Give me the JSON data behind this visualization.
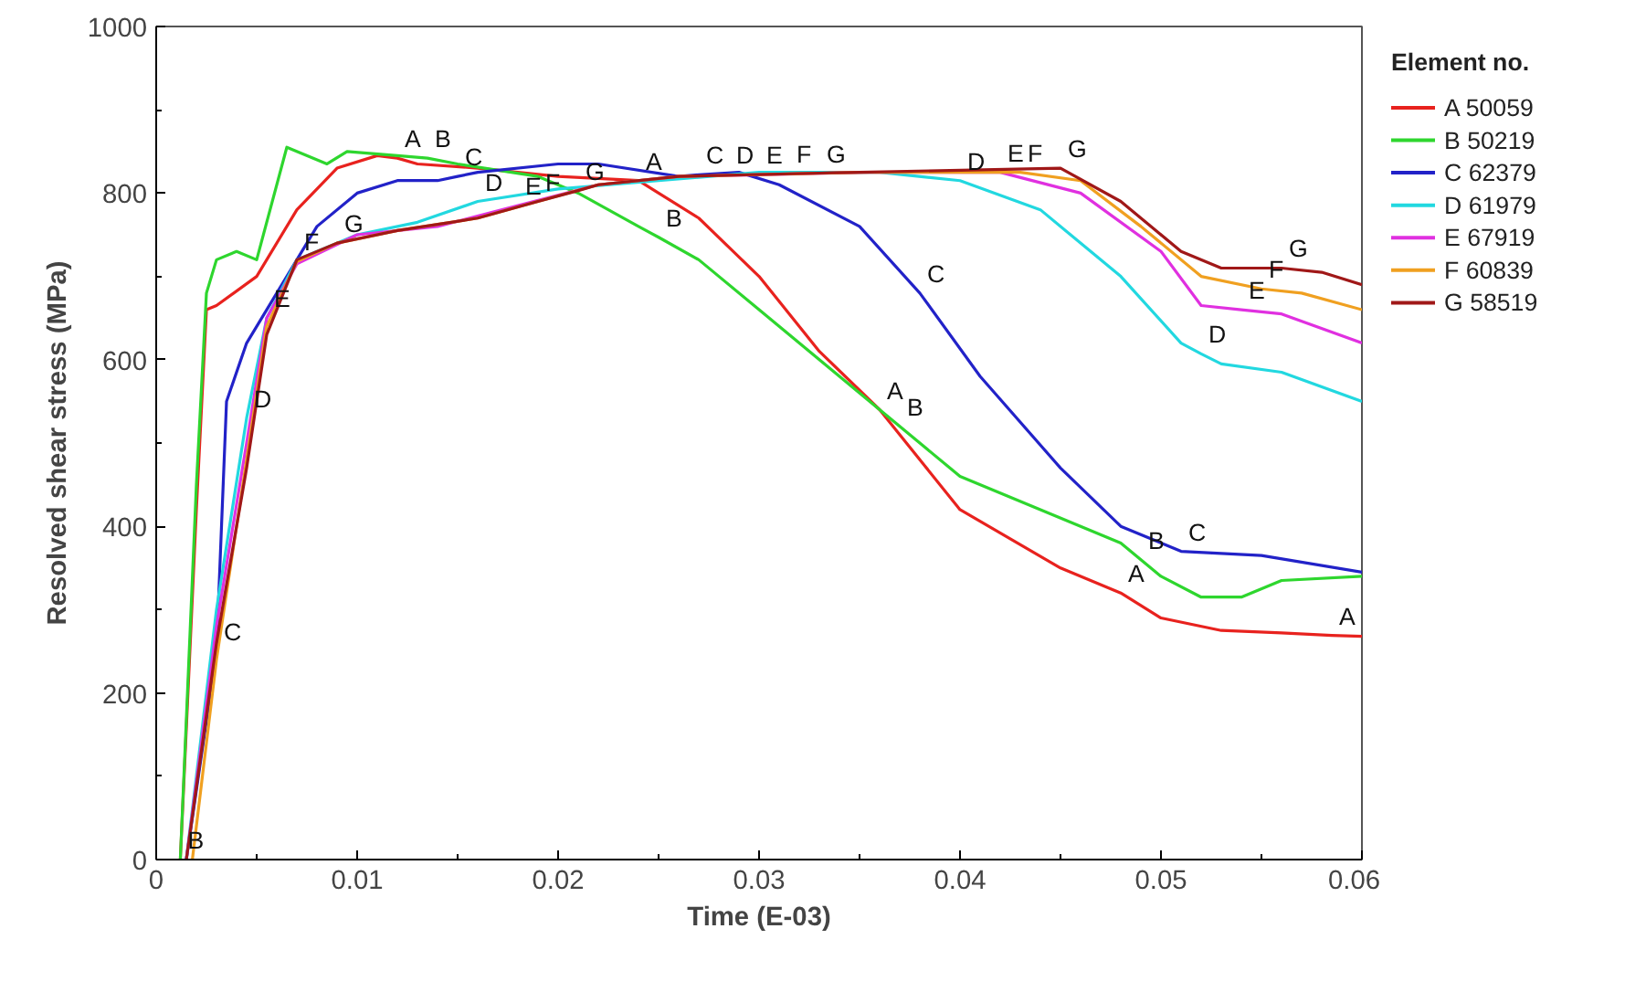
{
  "chart_data": {
    "type": "line",
    "xlabel": "Time (E-03)",
    "ylabel": "Resolved shear stress (MPa)",
    "legend_title": "Element no.",
    "legend": "right",
    "grid": false,
    "line_style": "solid",
    "marker": "none",
    "xlim": [
      0,
      0.06
    ],
    "xticks": [
      0,
      0.01,
      0.02,
      0.03,
      0.04,
      0.05,
      0.06
    ],
    "ylim": [
      0,
      1000
    ],
    "yticks": [
      0,
      200,
      400,
      600,
      800,
      1000
    ],
    "series": [
      {
        "name": "A 50059",
        "color": "#e8221e",
        "x": [
          0.0012,
          0.002,
          0.0025,
          0.003,
          0.005,
          0.007,
          0.009,
          0.011,
          0.012,
          0.013,
          0.016,
          0.02,
          0.024,
          0.025,
          0.027,
          0.03,
          0.033,
          0.036,
          0.038,
          0.04,
          0.045,
          0.048,
          0.05,
          0.053,
          0.056,
          0.0585,
          0.06
        ],
        "values": [
          0,
          420,
          660,
          665,
          700,
          780,
          830,
          845,
          842,
          835,
          830,
          820,
          815,
          800,
          770,
          700,
          610,
          540,
          480,
          420,
          350,
          320,
          290,
          275,
          272,
          269,
          268
        ]
      },
      {
        "name": "B 50219",
        "color": "#2ed62e",
        "x": [
          0.0012,
          0.002,
          0.0025,
          0.003,
          0.004,
          0.005,
          0.0065,
          0.0085,
          0.0095,
          0.012,
          0.0135,
          0.015,
          0.019,
          0.021,
          0.024,
          0.025,
          0.027,
          0.03,
          0.033,
          0.036,
          0.037,
          0.038,
          0.04,
          0.044,
          0.048,
          0.049,
          0.05,
          0.052,
          0.054,
          0.056,
          0.06
        ],
        "values": [
          0,
          450,
          680,
          720,
          730,
          720,
          855,
          835,
          850,
          845,
          842,
          835,
          820,
          800,
          760,
          747,
          720,
          660,
          600,
          540,
          520,
          500,
          460,
          420,
          380,
          360,
          340,
          315,
          315,
          335,
          340
        ]
      },
      {
        "name": "C 62379",
        "color": "#2222c8",
        "x": [
          0.0015,
          0.003,
          0.0035,
          0.0045,
          0.0065,
          0.008,
          0.01,
          0.012,
          0.014,
          0.015,
          0.016,
          0.02,
          0.022,
          0.026,
          0.027,
          0.029,
          0.031,
          0.035,
          0.038,
          0.041,
          0.045,
          0.048,
          0.051,
          0.055,
          0.06
        ],
        "values": [
          0,
          250,
          550,
          620,
          700,
          760,
          800,
          815,
          815,
          820,
          825,
          835,
          835,
          820,
          822,
          825,
          810,
          760,
          680,
          580,
          470,
          400,
          370,
          365,
          345
        ]
      },
      {
        "name": "D 61979",
        "color": "#22d8e0",
        "x": [
          0.0015,
          0.003,
          0.0045,
          0.0055,
          0.007,
          0.01,
          0.013,
          0.016,
          0.02,
          0.025,
          0.0285,
          0.03,
          0.036,
          0.04,
          0.044,
          0.048,
          0.051,
          0.052,
          0.053,
          0.056,
          0.06
        ],
        "values": [
          0,
          300,
          530,
          650,
          720,
          750,
          765,
          790,
          805,
          815,
          822,
          825,
          825,
          815,
          780,
          700,
          620,
          607,
          595,
          585,
          550
        ]
      },
      {
        "name": "E 67919",
        "color": "#e030e0",
        "x": [
          0.0015,
          0.003,
          0.0045,
          0.0055,
          0.007,
          0.01,
          0.014,
          0.018,
          0.022,
          0.026,
          0.03,
          0.035,
          0.042,
          0.046,
          0.05,
          0.052,
          0.054,
          0.056,
          0.06
        ],
        "values": [
          0,
          280,
          500,
          650,
          715,
          750,
          760,
          785,
          810,
          820,
          822,
          825,
          825,
          800,
          730,
          665,
          660,
          655,
          620
        ]
      },
      {
        "name": "F 60839",
        "color": "#f0a020",
        "x": [
          0.0018,
          0.003,
          0.0045,
          0.0055,
          0.007,
          0.009,
          0.012,
          0.016,
          0.019,
          0.022,
          0.026,
          0.0315,
          0.035,
          0.043,
          0.046,
          0.049,
          0.052,
          0.055,
          0.057,
          0.06
        ],
        "values": [
          0,
          240,
          480,
          640,
          718,
          740,
          755,
          770,
          790,
          810,
          820,
          823,
          825,
          825,
          815,
          760,
          700,
          685,
          680,
          660
        ]
      },
      {
        "name": "G 58519",
        "color": "#a01818",
        "x": [
          0.0015,
          0.003,
          0.0045,
          0.0055,
          0.007,
          0.009,
          0.012,
          0.016,
          0.019,
          0.021,
          0.022,
          0.026,
          0.033,
          0.035,
          0.045,
          0.048,
          0.051,
          0.053,
          0.056,
          0.058,
          0.06
        ],
        "values": [
          0,
          260,
          470,
          630,
          720,
          740,
          755,
          770,
          790,
          803,
          810,
          820,
          824,
          825,
          830,
          790,
          730,
          710,
          710,
          705,
          690
        ]
      }
    ],
    "annotations": [
      {
        "text": "A",
        "x": 0.012,
        "y": 842
      },
      {
        "text": "A",
        "x": 0.024,
        "y": 815
      },
      {
        "text": "A",
        "x": 0.036,
        "y": 540
      },
      {
        "text": "A",
        "x": 0.048,
        "y": 320
      },
      {
        "text": "A",
        "x": 0.0585,
        "y": 269
      },
      {
        "text": "B",
        "x": 0.0012,
        "y": 0
      },
      {
        "text": "B",
        "x": 0.0135,
        "y": 842
      },
      {
        "text": "B",
        "x": 0.025,
        "y": 747
      },
      {
        "text": "B",
        "x": 0.037,
        "y": 520
      },
      {
        "text": "B",
        "x": 0.049,
        "y": 360
      },
      {
        "text": "C",
        "x": 0.003,
        "y": 250
      },
      {
        "text": "C",
        "x": 0.015,
        "y": 820
      },
      {
        "text": "C",
        "x": 0.027,
        "y": 822
      },
      {
        "text": "C",
        "x": 0.038,
        "y": 680
      },
      {
        "text": "C",
        "x": 0.051,
        "y": 370
      },
      {
        "text": "D",
        "x": 0.0045,
        "y": 530
      },
      {
        "text": "D",
        "x": 0.016,
        "y": 790
      },
      {
        "text": "D",
        "x": 0.0285,
        "y": 822
      },
      {
        "text": "D",
        "x": 0.04,
        "y": 815
      },
      {
        "text": "D",
        "x": 0.052,
        "y": 607
      },
      {
        "text": "E",
        "x": 0.0055,
        "y": 650
      },
      {
        "text": "E",
        "x": 0.018,
        "y": 785
      },
      {
        "text": "E",
        "x": 0.03,
        "y": 822
      },
      {
        "text": "E",
        "x": 0.042,
        "y": 825
      },
      {
        "text": "E",
        "x": 0.054,
        "y": 660
      },
      {
        "text": "F",
        "x": 0.007,
        "y": 718
      },
      {
        "text": "F",
        "x": 0.019,
        "y": 790
      },
      {
        "text": "F",
        "x": 0.0315,
        "y": 823
      },
      {
        "text": "F",
        "x": 0.043,
        "y": 825
      },
      {
        "text": "F",
        "x": 0.055,
        "y": 685
      },
      {
        "text": "G",
        "x": 0.009,
        "y": 740
      },
      {
        "text": "G",
        "x": 0.021,
        "y": 803
      },
      {
        "text": "G",
        "x": 0.033,
        "y": 824
      },
      {
        "text": "G",
        "x": 0.045,
        "y": 830
      },
      {
        "text": "G",
        "x": 0.056,
        "y": 710
      }
    ]
  }
}
